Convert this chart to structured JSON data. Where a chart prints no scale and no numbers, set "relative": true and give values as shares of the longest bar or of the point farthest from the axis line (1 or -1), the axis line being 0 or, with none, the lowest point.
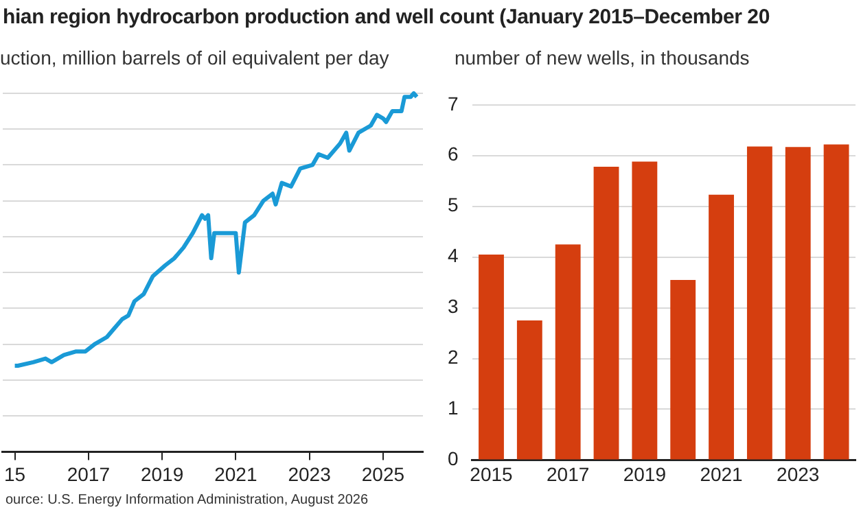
{
  "chart_data": [
    {
      "type": "line",
      "title": "hian region hydrocarbon production and well count (January 2015–December 20",
      "ylabel": "uction, million barrels of oil equivalent per day",
      "relative": true,
      "grid": "y",
      "legend": false,
      "marker": "none",
      "line_style": "solid",
      "x": [
        "2015-01",
        "2015-02",
        "2015-07",
        "2015-11",
        "2016-01",
        "2016-05",
        "2016-09",
        "2016-12",
        "2017-03",
        "2017-07",
        "2017-09",
        "2017-12",
        "2018-02",
        "2018-04",
        "2018-07",
        "2018-10",
        "2019-02",
        "2019-05",
        "2019-08",
        "2019-11",
        "2020-02",
        "2020-03",
        "2020-04",
        "2020-05",
        "2020-06",
        "2020-10",
        "2021-01",
        "2021-02",
        "2021-04",
        "2021-07",
        "2021-10",
        "2022-01",
        "2022-02",
        "2022-04",
        "2022-07",
        "2022-10",
        "2023-02",
        "2023-04",
        "2023-07",
        "2023-11",
        "2024-01",
        "2024-02",
        "2024-05",
        "2024-09",
        "2024-11",
        "2025-01",
        "2025-02",
        "2025-04",
        "2025-07",
        "2025-08",
        "2025-10",
        "2025-11",
        "2025-12"
      ],
      "series": [
        {
          "color": "#1a9ad6",
          "values": [
            0.24,
            0.24,
            0.25,
            0.26,
            0.25,
            0.27,
            0.28,
            0.28,
            0.3,
            0.32,
            0.34,
            0.37,
            0.38,
            0.42,
            0.44,
            0.49,
            0.52,
            0.54,
            0.57,
            0.61,
            0.66,
            0.65,
            0.66,
            0.54,
            0.61,
            0.61,
            0.61,
            0.5,
            0.64,
            0.66,
            0.7,
            0.72,
            0.69,
            0.75,
            0.74,
            0.79,
            0.8,
            0.83,
            0.82,
            0.86,
            0.89,
            0.84,
            0.89,
            0.91,
            0.94,
            0.93,
            0.92,
            0.95,
            0.95,
            0.99,
            0.99,
            1.0,
            0.99
          ]
        }
      ],
      "xlim": [
        "2014-09",
        "2026-02"
      ],
      "xticks": [
        {
          "value": "2015",
          "label": "15"
        },
        "2017",
        "2019",
        "2021",
        "2023",
        "2025"
      ],
      "annotations": [
        "ource: U.S. Energy Information Administration, August 2026"
      ]
    },
    {
      "type": "bar",
      "ylabel": "number of new wells, in thousands",
      "grid": "y",
      "legend": false,
      "categories": [
        "2015",
        null,
        "2017",
        null,
        "2019",
        null,
        "2021",
        null,
        "2023",
        null
      ],
      "values": [
        4.05,
        2.75,
        4.25,
        5.78,
        5.88,
        3.55,
        5.23,
        6.18,
        6.17,
        6.22
      ],
      "color": "#d53e0f",
      "ylim": [
        0,
        7
      ],
      "yticks": [
        0,
        1,
        2,
        3,
        4,
        5,
        6,
        7
      ]
    }
  ]
}
